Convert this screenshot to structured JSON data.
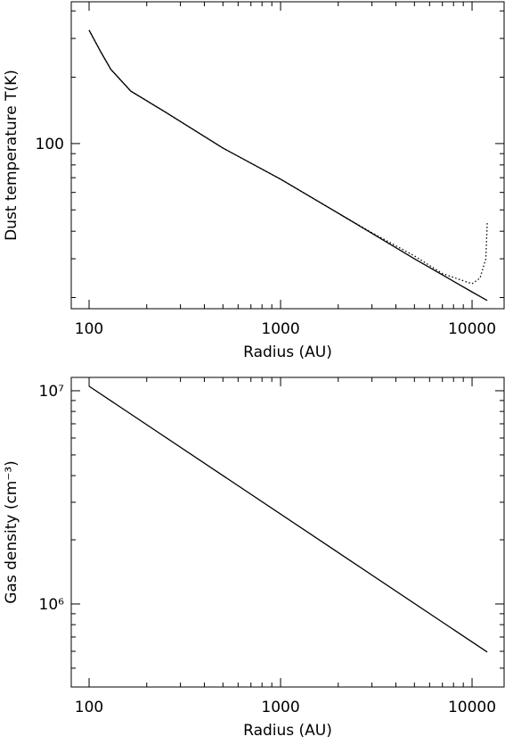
{
  "chart_data": [
    {
      "type": "line",
      "xlabel": "Radius (AU)",
      "ylabel": "Dust temperature T(K)",
      "xlog": true,
      "ylog": true,
      "xlim": [
        80.7,
        14700
      ],
      "ylim": [
        17.8,
        440
      ],
      "xticks": [
        100,
        1000,
        10000
      ],
      "yticks": [
        100
      ],
      "xminorticks": [
        200,
        300,
        400,
        500,
        600,
        700,
        800,
        900,
        2000,
        3000,
        4000,
        5000,
        6000,
        7000,
        8000,
        9000
      ],
      "yminorticks": [
        20,
        30,
        40,
        50,
        60,
        70,
        80,
        90,
        200,
        300,
        400
      ],
      "series": [
        {
          "color": "#000000",
          "dash": "solid",
          "x": [
            100,
            115,
            130,
            165,
            250,
            500,
            1000,
            2000,
            5000,
            10000,
            12000
          ],
          "values": [
            327,
            261,
            217,
            173,
            139,
            95.4,
            68.9,
            48.3,
            30.0,
            21.2,
            19.4
          ]
        },
        {
          "color": "#000000",
          "dash": "dotted",
          "x": [
            100,
            115,
            130,
            165,
            250,
            500,
            1000,
            2000,
            3000,
            5000,
            7000,
            10000,
            11000,
            11800,
            12000
          ],
          "values": [
            327,
            261,
            217,
            173,
            139,
            95.4,
            68.9,
            48.3,
            39.4,
            30.9,
            25.7,
            23.1,
            24.5,
            30.0,
            43.6
          ]
        }
      ]
    },
    {
      "type": "line",
      "xlabel": "Radius (AU)",
      "ylabel": "Gas density (cm⁻³)",
      "xlog": true,
      "ylog": true,
      "xlim": [
        80.7,
        14700
      ],
      "ylim": [
        408000,
        11550000
      ],
      "xticks": [
        100,
        1000,
        10000
      ],
      "yticks": [
        {
          "value": 1000000,
          "label": "10⁶"
        },
        {
          "value": 10000000,
          "label": "10⁷"
        }
      ],
      "xminorticks": [
        200,
        300,
        400,
        500,
        600,
        700,
        800,
        900,
        2000,
        3000,
        4000,
        5000,
        6000,
        7000,
        8000,
        9000
      ],
      "yminorticks": [
        500000,
        600000,
        700000,
        800000,
        900000,
        2000000,
        3000000,
        4000000,
        5000000,
        6000000,
        7000000,
        8000000,
        9000000
      ],
      "series": [
        {
          "color": "#000000",
          "dash": "solid",
          "x": [
            100,
            12000
          ],
          "values": [
            10500000,
            595000
          ]
        }
      ]
    }
  ]
}
